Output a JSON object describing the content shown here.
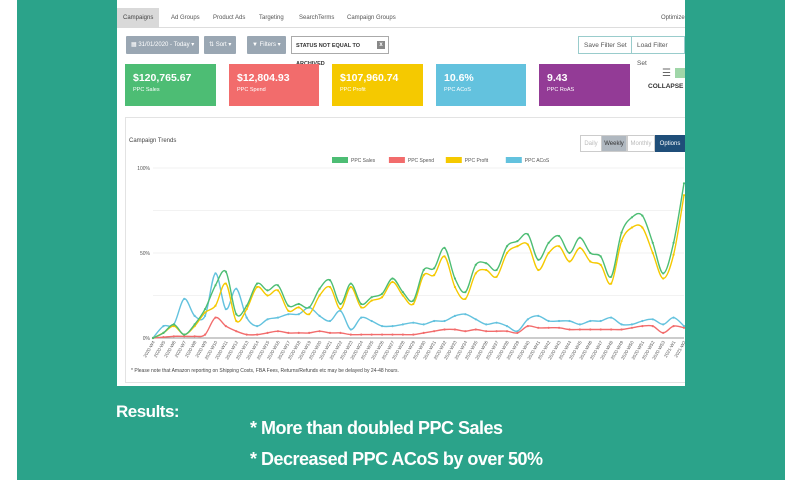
{
  "tabs": [
    "Campaigns",
    "Ad Groups",
    "Product Ads",
    "Targeting",
    "SearchTerms",
    "Campaign Groups"
  ],
  "tab_right": "Optimize",
  "toolbar": {
    "date": "31/01/2020 - Today",
    "sort": "Sort",
    "filters": "Filters",
    "chip": "STATUS NOT EQUAL TO ARCHIVED",
    "chip_close": "x",
    "save": "Save Filter Set",
    "load": "Load Filter Set"
  },
  "cards": [
    {
      "value": "$120,765.67",
      "label": "PPC Sales",
      "color": "#4dbd74"
    },
    {
      "value": "$12,804.93",
      "label": "PPC Spend",
      "color": "#f26c6c"
    },
    {
      "value": "$107,960.74",
      "label": "PPC Profit",
      "color": "#f5c900"
    },
    {
      "value": "10.6%",
      "label": "PPC ACoS",
      "color": "#63c2de"
    },
    {
      "value": "9.43",
      "label": "PPC RoAS",
      "color": "#933b96"
    }
  ],
  "collapse": "COLLAPSE",
  "chart_title": "Campaign Trends",
  "periods": [
    "Daily",
    "Weekly",
    "Monthly",
    "Options"
  ],
  "note": "* Please note that Amazon reporting on Shipping Costs, FBA Fees, Returns/Refunds etc may be delayed by 24-48 hours.",
  "results_label": "Results:",
  "bullets": [
    "* More than doubled PPC Sales",
    "* Decreased PPC ACoS by over 50%"
  ],
  "chart_data": {
    "type": "line",
    "ylim": [
      0,
      100
    ],
    "yticks": [
      "0%",
      "50%",
      "100%"
    ],
    "grid": true,
    "legend": "top-center",
    "x": [
      "2020-W4",
      "2020-W5",
      "2020-W6",
      "2020-W7",
      "2020-W8",
      "2020-W9",
      "2020-W10",
      "2020-W11",
      "2020-W12",
      "2020-W13",
      "2020-W14",
      "2020-W15",
      "2020-W16",
      "2020-W17",
      "2020-W18",
      "2020-W19",
      "2020-W20",
      "2020-W21",
      "2020-W22",
      "2020-W23",
      "2020-W24",
      "2020-W25",
      "2020-W26",
      "2020-W27",
      "2020-W28",
      "2020-W29",
      "2020-W30",
      "2020-W31",
      "2020-W32",
      "2020-W33",
      "2020-W34",
      "2020-W35",
      "2020-W36",
      "2020-W37",
      "2020-W38",
      "2020-W39",
      "2020-W40",
      "2020-W41",
      "2020-W42",
      "2020-W43",
      "2020-W44",
      "2020-W45",
      "2020-W46",
      "2020-W47",
      "2020-W48",
      "2020-W49",
      "2020-W50",
      "2020-W51",
      "2020-W52",
      "2020-W53",
      "2021-W1",
      "2021-W2"
    ],
    "series": [
      {
        "name": "PPC Sales",
        "color": "#4dbd74",
        "values": [
          0,
          3,
          8,
          2,
          8,
          17,
          31,
          39,
          14,
          19,
          32,
          28,
          31,
          19,
          20,
          18,
          29,
          34,
          20,
          32,
          20,
          24,
          26,
          35,
          27,
          22,
          40,
          41,
          53,
          35,
          27,
          43,
          44,
          40,
          54,
          57,
          61,
          46,
          56,
          60,
          50,
          59,
          50,
          48,
          36,
          62,
          71,
          72,
          56,
          38,
          56,
          91
        ]
      },
      {
        "name": "PPC Spend",
        "color": "#f26c6c",
        "values": [
          0,
          0.5,
          1,
          1,
          1,
          2,
          12,
          7,
          4,
          2,
          2,
          3,
          4,
          3,
          3,
          3,
          4,
          3,
          3,
          2,
          2,
          2,
          2,
          2,
          2,
          2,
          3,
          4,
          5,
          5,
          4,
          5,
          4,
          4,
          4,
          3,
          7,
          6,
          6,
          6,
          5,
          5,
          5,
          5,
          5,
          5,
          6,
          7,
          7,
          3,
          7,
          6
        ]
      },
      {
        "name": "PPC Profit",
        "color": "#f5c900",
        "values": [
          0,
          3,
          7,
          2,
          7,
          15,
          19,
          32,
          10,
          17,
          30,
          25,
          28,
          16,
          18,
          14,
          25,
          30,
          17,
          30,
          18,
          22,
          24,
          33,
          25,
          20,
          37,
          37,
          48,
          30,
          23,
          38,
          40,
          36,
          50,
          54,
          55,
          40,
          50,
          54,
          45,
          53,
          45,
          43,
          32,
          57,
          65,
          65,
          50,
          35,
          49,
          84
        ]
      },
      {
        "name": "PPC ACoS",
        "color": "#63c2de",
        "values": [
          0,
          7,
          8,
          23,
          13,
          13,
          38,
          17,
          29,
          12,
          7,
          11,
          12,
          14,
          14,
          18,
          13,
          10,
          16,
          5,
          12,
          10,
          7,
          7,
          8,
          9,
          8,
          10,
          10,
          13,
          14,
          11,
          8,
          9,
          7,
          4,
          11,
          13,
          10,
          10,
          10,
          8,
          10,
          10,
          12,
          8,
          8,
          10,
          11,
          8,
          12,
          7
        ]
      }
    ]
  }
}
